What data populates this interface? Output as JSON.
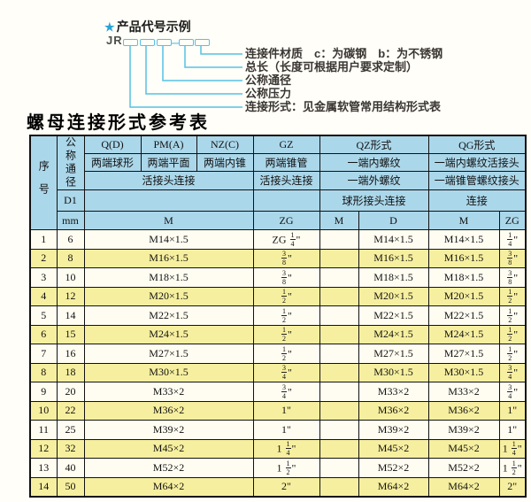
{
  "colors": {
    "header_blue": "#abd7ea",
    "row_yellow": "#f6ef9f",
    "row_white": "#fffdf2",
    "leader_cyan": "#56c1e6",
    "star_blue": "#29a3d9"
  },
  "diagram": {
    "star_icon": "★",
    "heading": "产品代号示例",
    "code_prefix": "JR",
    "dash": "—",
    "callouts": [
      "连接件材质　c：为碳钢　b：为不锈钢",
      "总长（长度可根据用户要求定制）",
      "公称通径",
      "公称压力",
      "连接形式：见金属软管常用结构形式表"
    ]
  },
  "table": {
    "title": "螺母连接形式参考表",
    "header": {
      "seq_label": "序号",
      "dn_label": "公称通径",
      "d1_label": "D1",
      "unit_label": "mm",
      "col_qd": "Q(D)",
      "col_pma": "PM(A)",
      "col_nzc": "NZ(C)",
      "col_gz": "GZ",
      "col_qz": "QZ形式",
      "col_qg": "QG形式",
      "qd_desc": "两端球形",
      "pma_desc": "两端平面",
      "nzc_desc": "两端内锥",
      "gz_desc": "两端锥管",
      "qz_desc1": "一端内螺纹",
      "qg_desc1": "一端内螺纹活接头",
      "m_conn": "活接头连接",
      "gz_conn": "活接头连接",
      "qz_desc2": "一端外螺纹",
      "qg_desc2": "一端锥管螺纹接头",
      "qz_conn": "球形接头连接",
      "qg_conn": "连接",
      "m_col": "M",
      "gz_col": "ZG",
      "qz_m_col": "M",
      "qz_d_col": "D",
      "qg_m_col": "M",
      "qg_zg_col": "ZG"
    },
    "rows": [
      {
        "seq": "1",
        "dn": "6",
        "m": "M14×1.5",
        "gz": "ZG 1/4\"",
        "qz_m": "",
        "qz_d": "M14×1.5",
        "qg_m": "M14×1.5",
        "qg_zg": "1/4\""
      },
      {
        "seq": "2",
        "dn": "8",
        "m": "M16×1.5",
        "gz": "3/8\"",
        "qz_m": "",
        "qz_d": "M16×1.5",
        "qg_m": "M16×1.5",
        "qg_zg": "3/8\""
      },
      {
        "seq": "3",
        "dn": "10",
        "m": "M18×1.5",
        "gz": "3/8\"",
        "qz_m": "",
        "qz_d": "M18×1.5",
        "qg_m": "M18×1.5",
        "qg_zg": "3/8\""
      },
      {
        "seq": "4",
        "dn": "12",
        "m": "M20×1.5",
        "gz": "1/2\"",
        "qz_m": "",
        "qz_d": "M20×1.5",
        "qg_m": "M20×1.5",
        "qg_zg": "1/2\""
      },
      {
        "seq": "5",
        "dn": "14",
        "m": "M22×1.5",
        "gz": "1/2\"",
        "qz_m": "",
        "qz_d": "M22×1.5",
        "qg_m": "M22×1.5",
        "qg_zg": "1/2\""
      },
      {
        "seq": "6",
        "dn": "15",
        "m": "M24×1.5",
        "gz": "1/2\"",
        "qz_m": "",
        "qz_d": "M24×1.5",
        "qg_m": "M24×1.5",
        "qg_zg": "1/2\""
      },
      {
        "seq": "7",
        "dn": "16",
        "m": "M27×1.5",
        "gz": "1/2\"",
        "qz_m": "",
        "qz_d": "M27×1.5",
        "qg_m": "M27×1.5",
        "qg_zg": "1/2\""
      },
      {
        "seq": "8",
        "dn": "18",
        "m": "M30×1.5",
        "gz": "3/4\"",
        "qz_m": "",
        "qz_d": "M30×1.5",
        "qg_m": "M30×1.5",
        "qg_zg": "3/4\""
      },
      {
        "seq": "9",
        "dn": "20",
        "m": "M33×2",
        "gz": "3/4\"",
        "qz_m": "",
        "qz_d": "M33×2",
        "qg_m": "M33×2",
        "qg_zg": "3/4\""
      },
      {
        "seq": "10",
        "dn": "22",
        "m": "M36×2",
        "gz": "1\"",
        "qz_m": "",
        "qz_d": "M36×2",
        "qg_m": "M36×2",
        "qg_zg": "1\""
      },
      {
        "seq": "11",
        "dn": "25",
        "m": "M39×2",
        "gz": "1\"",
        "qz_m": "",
        "qz_d": "M39×2",
        "qg_m": "M39×2",
        "qg_zg": "1\""
      },
      {
        "seq": "12",
        "dn": "32",
        "m": "M45×2",
        "gz": "1 1/4\"",
        "qz_m": "",
        "qz_d": "M45×2",
        "qg_m": "M45×2",
        "qg_zg": "1 1/4\""
      },
      {
        "seq": "13",
        "dn": "40",
        "m": "M52×2",
        "gz": "1 1/2\"",
        "qz_m": "",
        "qz_d": "M52×2",
        "qg_m": "M52×2",
        "qg_zg": "1 1/2\""
      },
      {
        "seq": "14",
        "dn": "50",
        "m": "M64×2",
        "gz": "2\"",
        "qz_m": "",
        "qz_d": "M64×2",
        "qg_m": "M64×2",
        "qg_zg": "2\""
      }
    ]
  }
}
